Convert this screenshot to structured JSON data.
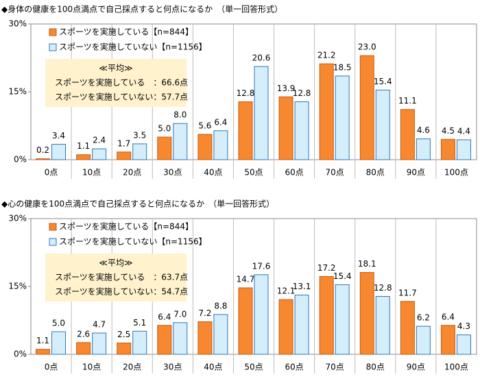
{
  "chart_data": [
    {
      "type": "bar",
      "title": "◆身体の健康を100点満点で自己採点すると何点になるか　（単一回答形式）",
      "categories": [
        "0点",
        "10点",
        "20点",
        "30点",
        "40点",
        "50点",
        "60点",
        "70点",
        "80点",
        "90点",
        "100点"
      ],
      "series": [
        {
          "name": "スポーツを実施している【n=844】",
          "color": "#F7882F",
          "values": [
            0.2,
            1.1,
            1.7,
            5.0,
            5.6,
            12.8,
            13.9,
            21.2,
            23.0,
            11.1,
            4.5
          ],
          "value_labels": [
            "0.2",
            "1.1",
            "1.7",
            "5.0",
            "5.6",
            "12.8",
            "13.9",
            "21.2",
            "23.0",
            "11.1",
            "4.5"
          ]
        },
        {
          "name": "スポーツを実施していない【n=1156】",
          "color": "#D5EEFC",
          "values": [
            3.4,
            2.4,
            3.5,
            8.0,
            6.4,
            20.6,
            12.8,
            18.5,
            15.4,
            4.6,
            4.4
          ],
          "value_labels": [
            "3.4",
            "2.4",
            "3.5",
            "8.0",
            "6.4",
            "20.6",
            "12.8",
            "18.5",
            "15.4",
            "4.6",
            "4.4"
          ]
        }
      ],
      "ylim": [
        0,
        30
      ],
      "yticks": [
        {
          "value": 0,
          "label": "0%"
        },
        {
          "value": 15,
          "label": "15%"
        },
        {
          "value": 30,
          "label": "30%"
        }
      ],
      "annotation": [
        "≪平均≫",
        "スポーツを実施している　：66.6点",
        "スポーツを実施していない：57.7点"
      ]
    },
    {
      "type": "bar",
      "title": "◆心の健康を100点満点で自己採点すると何点になるか　（単一回答形式）",
      "categories": [
        "0点",
        "10点",
        "20点",
        "30点",
        "40点",
        "50点",
        "60点",
        "70点",
        "80点",
        "90点",
        "100点"
      ],
      "series": [
        {
          "name": "スポーツを実施している【n=844】",
          "color": "#F7882F",
          "values": [
            1.1,
            2.6,
            2.5,
            6.4,
            7.2,
            14.7,
            12.1,
            17.2,
            18.1,
            11.7,
            6.4
          ],
          "value_labels": [
            "1.1",
            "2.6",
            "2.5",
            "6.4",
            "7.2",
            "14.7",
            "12.1",
            "17.2",
            "18.1",
            "11.7",
            "6.4"
          ]
        },
        {
          "name": "スポーツを実施していない【n=1156】",
          "color": "#D5EEFC",
          "values": [
            5.0,
            4.7,
            5.1,
            7.0,
            8.8,
            17.6,
            13.1,
            15.4,
            12.8,
            6.2,
            4.3
          ],
          "value_labels": [
            "5.0",
            "4.7",
            "5.1",
            "7.0",
            "8.8",
            "17.6",
            "13.1",
            "15.4",
            "12.8",
            "6.2",
            "4.3"
          ]
        }
      ],
      "ylim": [
        0,
        30
      ],
      "yticks": [
        {
          "value": 0,
          "label": "0%"
        },
        {
          "value": 15,
          "label": "15%"
        },
        {
          "value": 30,
          "label": "30%"
        }
      ],
      "annotation": [
        "≪平均≫",
        "スポーツを実施している　：63.7点",
        "スポーツを実施していない：54.7点"
      ]
    }
  ]
}
